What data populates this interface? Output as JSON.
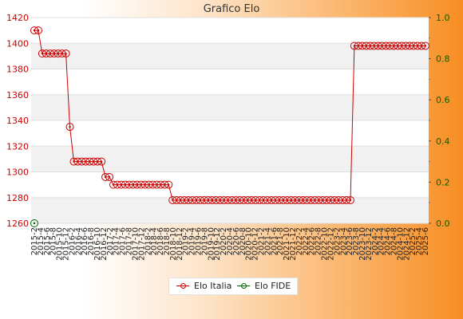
{
  "chart_data": {
    "type": "line",
    "title": "Grafico Elo",
    "xlabel": "",
    "ylabel": "",
    "ylim": [
      1260,
      1420
    ],
    "y_ticks": [
      1260,
      1280,
      1300,
      1320,
      1340,
      1360,
      1380,
      1400,
      1420
    ],
    "y2lim": [
      0.0,
      1.0
    ],
    "y2_ticks": [
      "0.0",
      "0.2",
      "0.4",
      "0.6",
      "0.8",
      "1.0"
    ],
    "grid": true,
    "legend_position": "bottom-center",
    "point_count": 100,
    "x_tick_labels": [
      "2015-2",
      "2015-4",
      "2015-6",
      "2015-8",
      "2015-10",
      "2015-12",
      "2016-2",
      "2016-4",
      "2016-6",
      "2016-8",
      "2016-10",
      "2016-12",
      "2017-2",
      "2017-4",
      "2017-6",
      "2017-8",
      "2017-10",
      "2017-12",
      "2018-2",
      "2018-4",
      "2018-6",
      "2018-8",
      "2018-10",
      "2018-12",
      "2019-2",
      "2019-4",
      "2019-6",
      "2019-8",
      "2019-10",
      "2019-12",
      "2020-2",
      "2020-4",
      "2020-6",
      "2020-8",
      "2020-10",
      "2020-12",
      "2021-2",
      "2021-4",
      "2021-6",
      "2021-8",
      "2021-10",
      "2021-12",
      "2022-2",
      "2022-4",
      "2022-6",
      "2022-8",
      "2022-10",
      "2022-12",
      "2023-2",
      "2023-4",
      "2023-6",
      "2023-8",
      "2023-10",
      "2023-12",
      "2024-2",
      "2024-4",
      "2024-6",
      "2024-8",
      "2024-10",
      "2024-12",
      "2025-2",
      "2025-4",
      "2025-6"
    ],
    "series": [
      {
        "name": "Elo Italia",
        "color": "#cc0000",
        "segments": [
          {
            "count": 2,
            "value": 1410
          },
          {
            "count": 7,
            "value": 1392
          },
          {
            "count": 1,
            "value": 1335
          },
          {
            "count": 8,
            "value": 1308
          },
          {
            "count": 2,
            "value": 1296
          },
          {
            "count": 15,
            "value": 1290
          },
          {
            "count": 46,
            "value": 1278
          },
          {
            "count": 19,
            "value": 1398
          }
        ]
      },
      {
        "name": "Elo FIDE",
        "color": "#006600",
        "segments": [
          {
            "count": 1,
            "value": 0
          }
        ]
      }
    ]
  }
}
